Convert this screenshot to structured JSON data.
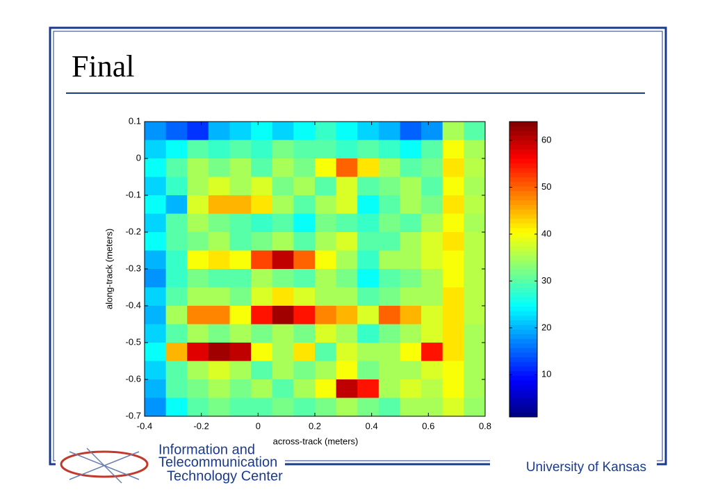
{
  "slide": {
    "title": "Final",
    "footer": "University of Kansas",
    "logo": [
      "Information and",
      "Telecommunication",
      "Technology Center"
    ]
  },
  "chart_data": {
    "type": "heatmap",
    "colormap": "jet",
    "xlabel": "across-track (meters)",
    "ylabel": "along-track (meters)",
    "x": [
      -0.3625,
      -0.2875,
      -0.2125,
      -0.1375,
      -0.0625,
      0.0125,
      0.0875,
      0.1625,
      0.2375,
      0.3125,
      0.3875,
      0.4625,
      0.5375,
      0.6125,
      0.6875,
      0.7625
    ],
    "y": [
      0.075,
      0.025,
      -0.025,
      -0.075,
      -0.125,
      -0.175,
      -0.225,
      -0.275,
      -0.325,
      -0.375,
      -0.425,
      -0.475,
      -0.525,
      -0.575,
      -0.625,
      -0.675
    ],
    "values": [
      [
        18,
        15,
        12,
        20,
        22,
        25,
        22,
        25,
        28,
        25,
        22,
        20,
        15,
        18,
        35,
        30
      ],
      [
        22,
        25,
        30,
        28,
        30,
        28,
        32,
        30,
        30,
        28,
        30,
        28,
        25,
        30,
        40,
        35
      ],
      [
        25,
        30,
        35,
        32,
        35,
        30,
        35,
        32,
        40,
        50,
        42,
        35,
        30,
        32,
        42,
        36
      ],
      [
        22,
        28,
        35,
        38,
        35,
        38,
        32,
        35,
        30,
        38,
        30,
        32,
        35,
        30,
        40,
        35
      ],
      [
        25,
        20,
        38,
        45,
        45,
        42,
        35,
        30,
        35,
        38,
        25,
        30,
        35,
        32,
        42,
        36
      ],
      [
        22,
        30,
        35,
        32,
        30,
        28,
        30,
        25,
        32,
        30,
        28,
        32,
        30,
        35,
        40,
        35
      ],
      [
        25,
        30,
        32,
        35,
        30,
        32,
        35,
        30,
        35,
        38,
        30,
        30,
        35,
        38,
        42,
        36
      ],
      [
        20,
        28,
        40,
        42,
        40,
        52,
        60,
        50,
        40,
        35,
        28,
        35,
        35,
        38,
        40,
        36
      ],
      [
        18,
        28,
        32,
        30,
        30,
        35,
        32,
        30,
        35,
        32,
        25,
        30,
        32,
        35,
        40,
        36
      ],
      [
        22,
        30,
        35,
        35,
        32,
        38,
        42,
        38,
        35,
        35,
        30,
        32,
        35,
        35,
        42,
        36
      ],
      [
        20,
        35,
        48,
        48,
        40,
        55,
        62,
        55,
        48,
        45,
        38,
        50,
        45,
        38,
        42,
        36
      ],
      [
        22,
        30,
        35,
        32,
        35,
        32,
        35,
        32,
        38,
        35,
        28,
        32,
        35,
        38,
        42,
        35
      ],
      [
        25,
        45,
        58,
        62,
        60,
        40,
        35,
        42,
        30,
        38,
        35,
        35,
        40,
        55,
        42,
        35
      ],
      [
        22,
        30,
        35,
        38,
        35,
        30,
        35,
        32,
        35,
        40,
        32,
        35,
        35,
        38,
        40,
        35
      ],
      [
        20,
        30,
        32,
        35,
        32,
        35,
        30,
        35,
        40,
        60,
        55,
        35,
        38,
        36,
        40,
        35
      ],
      [
        18,
        25,
        30,
        32,
        30,
        30,
        32,
        30,
        32,
        35,
        32,
        30,
        35,
        35,
        38,
        34
      ]
    ],
    "xlim": [
      -0.4,
      0.8
    ],
    "xticks": [
      -0.4,
      -0.2,
      0,
      0.2,
      0.4,
      0.6,
      0.8
    ],
    "ylim": [
      -0.7,
      0.1
    ],
    "yticks": [
      0.1,
      0,
      -0.1,
      -0.2,
      -0.3,
      -0.4,
      -0.5,
      -0.6,
      -0.7
    ],
    "clim": [
      1,
      64
    ],
    "cticks": [
      10,
      20,
      30,
      40,
      50,
      60
    ]
  }
}
